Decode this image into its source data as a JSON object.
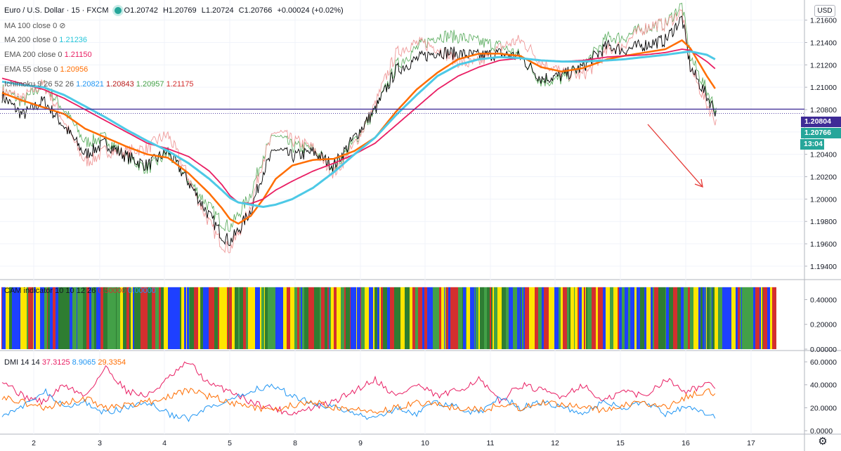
{
  "header": {
    "symbol": "Euro / U.S. Dollar · 15 · FXCM",
    "open": "O1.20742",
    "high": "H1.20769",
    "low": "L1.20724",
    "close": "C1.20766",
    "change": "+0.00024 (+0.02%)"
  },
  "indicators": [
    {
      "name": "MA 100 close 0",
      "values": [],
      "hidden": true
    },
    {
      "name": "MA 200 close 0",
      "values": [
        "1.21236"
      ],
      "colors": [
        "#26c6da"
      ]
    },
    {
      "name": "EMA 200 close 0",
      "values": [
        "1.21150"
      ],
      "colors": [
        "#e91e63"
      ]
    },
    {
      "name": "EMA 55 close 0",
      "values": [
        "1.20956"
      ],
      "colors": [
        "#ff6d00"
      ]
    },
    {
      "name": "Ichimoku 9 26 52 26",
      "values": [
        "1.20821",
        "1.20843",
        "1.20957",
        "1.21175"
      ],
      "colors": [
        "#2196f3",
        "#b71c1c",
        "#43a047",
        "#d32f2f"
      ]
    }
  ],
  "currency_label": "USD",
  "price_tags": {
    "level": "1.20804",
    "last": "1.20766",
    "countdown": "13:04"
  },
  "cam": {
    "name": "CAM indicator 10 10 12 26",
    "values": [
      "0.50000",
      "0.00000"
    ],
    "colors": [
      "#d32f2f",
      "#2196f3"
    ]
  },
  "dmi": {
    "name": "DMI 14 14",
    "values": [
      "37.3125",
      "8.9065",
      "29.3354"
    ],
    "colors": [
      "#e91e63",
      "#2196f3",
      "#ff6d00"
    ]
  },
  "colors": {
    "up": "#000000",
    "level_line": "#3f2b96",
    "arrow": "#e53935",
    "cam_palette": [
      "#d32f2f",
      "#2e7d32",
      "#1e40ff",
      "#ffe600",
      "#43a047"
    ]
  },
  "chart_data": [
    {
      "type": "line",
      "title": "Euro / U.S. Dollar · 15 · FXCM",
      "x_ticks": [
        "2",
        "3",
        "4",
        "5",
        "8",
        "9",
        "10",
        "11",
        "12",
        "15",
        "16",
        "17"
      ],
      "y_ticks": [
        "1.19400",
        "1.19600",
        "1.19800",
        "1.20000",
        "1.20200",
        "1.20400",
        "1.20600",
        "1.20800",
        "1.21000",
        "1.21200",
        "1.21400",
        "1.21600"
      ],
      "ylim": [
        1.1928,
        1.2178
      ],
      "horizontal_line": 1.20804,
      "x": [
        0,
        0.5,
        1,
        1.5,
        2,
        2.5,
        3,
        3.5,
        4,
        4.5,
        5,
        5.3,
        5.5,
        5.7,
        6,
        6.3,
        6.6,
        7,
        7.5,
        8,
        8.5,
        9,
        9.5,
        10,
        10.5,
        11,
        11.5,
        12,
        12.5,
        13,
        13.5,
        14,
        14.6,
        15,
        15.5,
        16,
        16.4,
        16.6,
        17,
        17.25
      ],
      "series": [
        {
          "name": "price",
          "values": [
            1.2092,
            1.2075,
            1.2088,
            1.2065,
            1.204,
            1.205,
            1.2038,
            1.203,
            1.2043,
            1.2015,
            1.1985,
            1.1968,
            1.1962,
            1.1972,
            1.199,
            1.2025,
            1.2045,
            1.2038,
            1.2042,
            1.203,
            1.2055,
            1.208,
            1.2115,
            1.2125,
            1.2132,
            1.213,
            1.2128,
            1.213,
            1.2127,
            1.2108,
            1.211,
            1.2118,
            1.2137,
            1.2133,
            1.2138,
            1.2142,
            1.2162,
            1.2118,
            1.2092,
            1.2076
          ]
        },
        {
          "name": "EMA 55 close 0",
          "values": [
            1.2095,
            1.2088,
            1.2082,
            1.2076,
            1.2063,
            1.2055,
            1.2047,
            1.204,
            1.2037,
            1.2023,
            1.2005,
            1.1992,
            1.1982,
            1.1978,
            1.1985,
            1.2,
            1.2018,
            1.203,
            1.2035,
            1.2036,
            1.2043,
            1.2055,
            1.2078,
            1.2098,
            1.2113,
            1.2125,
            1.213,
            1.213,
            1.2128,
            1.2118,
            1.2114,
            1.2117,
            1.2125,
            1.2128,
            1.2131,
            1.2134,
            1.2142,
            1.2135,
            1.211,
            1.2096
          ]
        },
        {
          "name": "EMA 200 close 0",
          "values": [
            1.2108,
            1.2103,
            1.2098,
            1.209,
            1.208,
            1.207,
            1.206,
            1.205,
            1.2045,
            1.2038,
            1.2025,
            1.2013,
            1.2003,
            1.1997,
            1.1996,
            1.2,
            1.2008,
            1.2016,
            1.2025,
            1.2032,
            1.204,
            1.205,
            1.2066,
            1.2082,
            1.2098,
            1.211,
            1.2118,
            1.2124,
            1.2126,
            1.2124,
            1.2123,
            1.2124,
            1.2127,
            1.2128,
            1.2129,
            1.2131,
            1.2134,
            1.2133,
            1.2123,
            1.2115
          ]
        },
        {
          "name": "MA 200 close 0",
          "values": [
            1.2105,
            1.2102,
            1.21,
            1.2093,
            1.2083,
            1.2073,
            1.2062,
            1.2052,
            1.2043,
            1.2032,
            1.2018,
            1.2008,
            1.2001,
            1.1997,
            1.1995,
            1.1993,
            1.1995,
            1.2,
            1.201,
            1.2024,
            1.204,
            1.2055,
            1.2075,
            1.2093,
            1.211,
            1.212,
            1.2125,
            1.2127,
            1.2126,
            1.2124,
            1.2123,
            1.2123,
            1.2124,
            1.2125,
            1.2127,
            1.2129,
            1.2131,
            1.2132,
            1.2129,
            1.2124
          ]
        }
      ]
    },
    {
      "type": "heatmap",
      "title": "CAM indicator 10 10 12 26",
      "y_ticks": [
        "0.40000",
        "0.20000",
        "0.00000"
      ],
      "ylim": [
        0,
        0.55
      ],
      "value": 0.5
    },
    {
      "type": "line",
      "title": "DMI 14 14",
      "y_ticks": [
        "60.0000",
        "40.0000",
        "20.0000",
        "0.0000"
      ],
      "ylim": [
        -3,
        68
      ],
      "x": [
        0,
        0.5,
        1,
        1.5,
        2,
        2.5,
        3,
        3.5,
        4,
        4.5,
        5,
        5.5,
        6,
        6.5,
        7,
        7.5,
        8,
        8.5,
        9,
        9.5,
        10,
        10.5,
        11,
        11.5,
        12,
        12.5,
        13,
        13.5,
        14,
        14.5,
        15,
        15.5,
        16,
        16.5,
        17,
        17.25
      ],
      "series": [
        {
          "name": "DMI+",
          "values": [
            45,
            30,
            25,
            40,
            30,
            55,
            35,
            30,
            45,
            60,
            40,
            35,
            25,
            20,
            15,
            20,
            25,
            35,
            45,
            30,
            40,
            30,
            35,
            45,
            25,
            40,
            35,
            30,
            40,
            25,
            35,
            30,
            45,
            35,
            40,
            37
          ]
        },
        {
          "name": "DMI-",
          "values": [
            15,
            20,
            35,
            20,
            25,
            15,
            20,
            25,
            15,
            10,
            20,
            25,
            35,
            40,
            30,
            25,
            20,
            15,
            10,
            20,
            15,
            25,
            20,
            15,
            30,
            20,
            25,
            20,
            15,
            25,
            20,
            25,
            15,
            20,
            15,
            9
          ]
        },
        {
          "name": "ADX",
          "values": [
            30,
            25,
            20,
            25,
            28,
            20,
            22,
            25,
            30,
            35,
            30,
            25,
            20,
            18,
            22,
            25,
            20,
            18,
            15,
            20,
            25,
            22,
            20,
            18,
            22,
            20,
            25,
            22,
            20,
            18,
            22,
            25,
            20,
            30,
            35,
            29
          ]
        }
      ]
    }
  ]
}
